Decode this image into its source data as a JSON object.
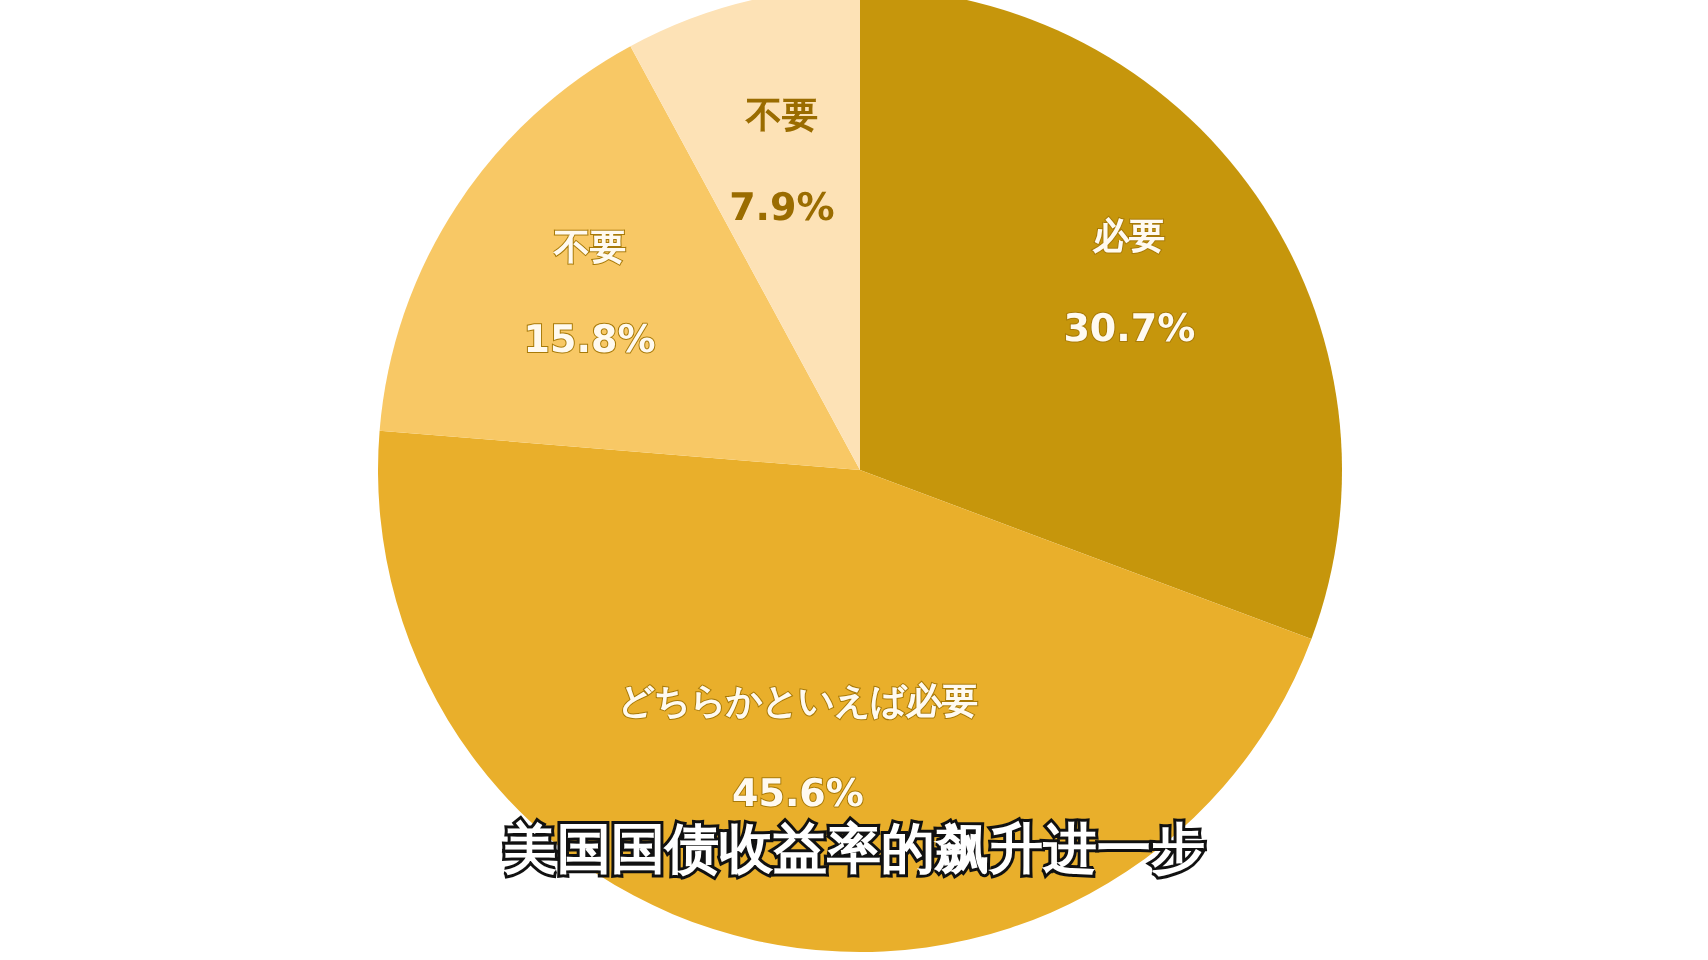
{
  "chart_data": {
    "type": "pie",
    "categories": [
      "必要",
      "どちらかといえば必要",
      "不要",
      "不要"
    ],
    "values": [
      30.7,
      45.6,
      15.8,
      7.9
    ],
    "value_labels": [
      "30.7%",
      "45.6%",
      "15.8%",
      "7.9%"
    ],
    "colors": [
      "#c6960c",
      "#e9af2b",
      "#f8c865",
      "#fde2b6"
    ],
    "legend": false,
    "annotations": [
      "美国国债收益率的飙升进一步"
    ]
  }
}
